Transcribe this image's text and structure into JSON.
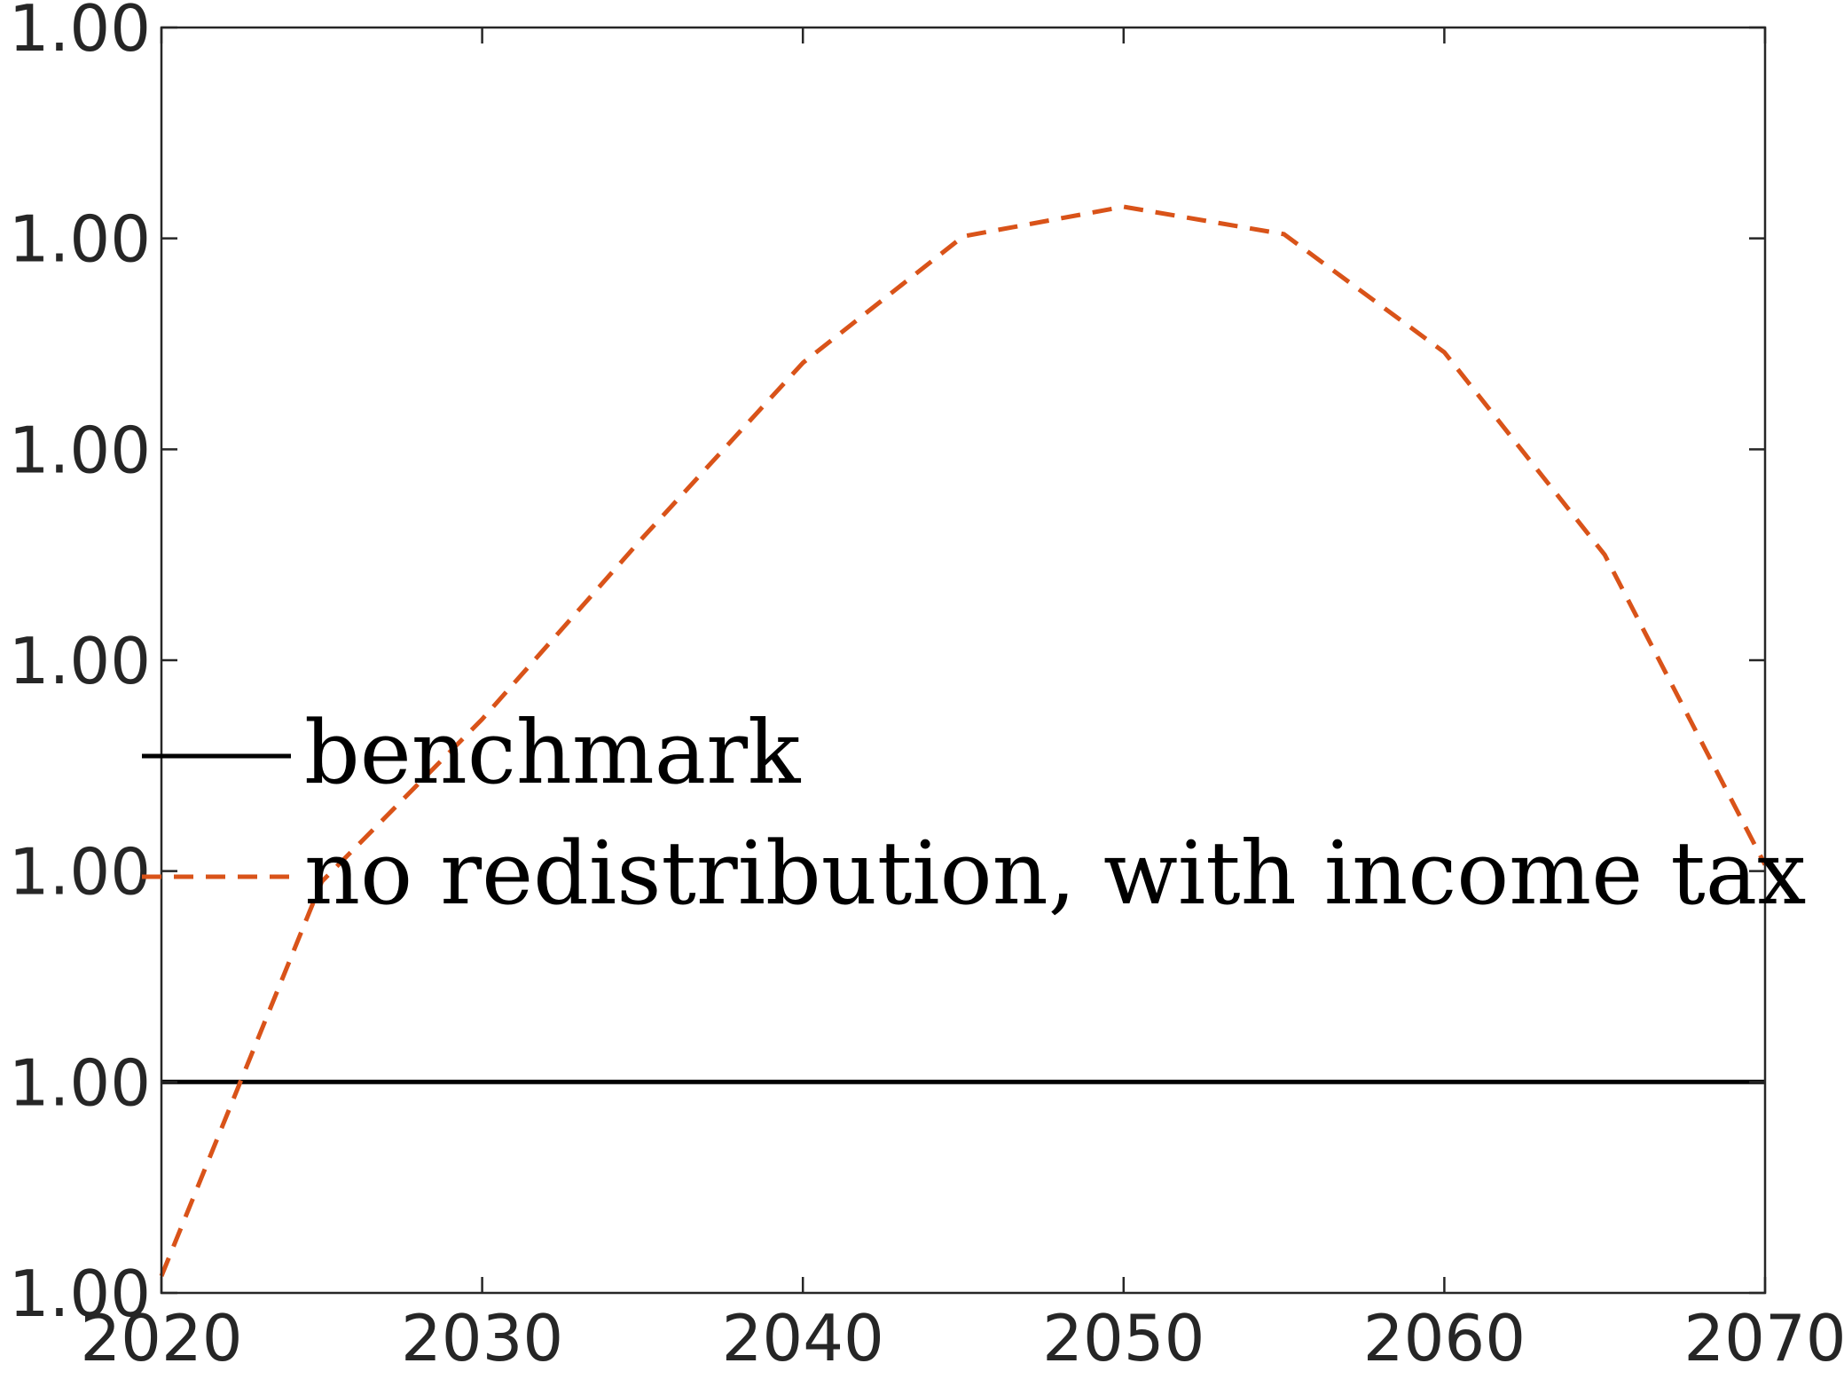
{
  "chart_data": {
    "type": "line",
    "title": "",
    "xlabel": "",
    "ylabel": "",
    "x_ticks": [
      "2020",
      "2030",
      "2040",
      "2050",
      "2060",
      "2070"
    ],
    "y_ticks": [
      "1.00",
      "1.00",
      "1.00",
      "1.00",
      "1.00",
      "1.00",
      "1.00"
    ],
    "xlim": [
      2020,
      2070
    ],
    "ylim": [
      0,
      6
    ],
    "grid": false,
    "legend_position": "center-left",
    "series": [
      {
        "name": "benchmark",
        "style": "solid",
        "color": "#000000",
        "x": [
          2020,
          2070
        ],
        "y": [
          1.0,
          1.0
        ]
      },
      {
        "name": "no redistribution, with income tax",
        "style": "dashed",
        "color": "#D95319",
        "x": [
          2020,
          2025,
          2030,
          2035,
          2040,
          2045,
          2050,
          2055,
          2060,
          2065,
          2070
        ],
        "y": [
          0.08,
          1.95,
          2.72,
          3.58,
          4.41,
          5.01,
          5.15,
          5.02,
          4.46,
          3.5,
          2.03
        ]
      }
    ]
  }
}
